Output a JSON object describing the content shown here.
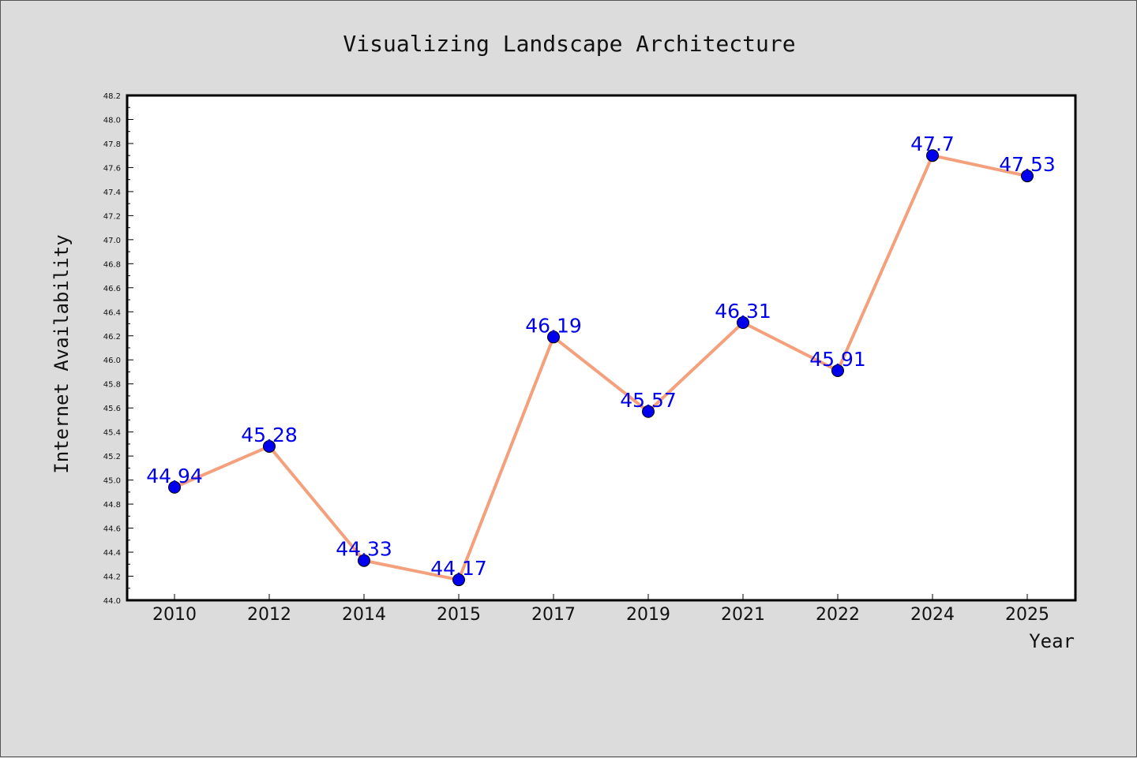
{
  "chart_data": {
    "type": "line",
    "title": "Visualizing Landscape Architecture",
    "xlabel": "Year",
    "ylabel": "Internet Availability",
    "categories": [
      "2010",
      "2012",
      "2014",
      "2015",
      "2017",
      "2019",
      "2021",
      "2022",
      "2024",
      "2025"
    ],
    "values": [
      44.94,
      45.28,
      44.33,
      44.17,
      46.19,
      45.57,
      46.31,
      45.91,
      47.7,
      47.53
    ],
    "data_labels": [
      "44.94",
      "45.28",
      "44.33",
      "44.17",
      "46.19",
      "45.57",
      "46.31",
      "45.91",
      "47.7",
      "47.53"
    ],
    "ylim": [
      44.0,
      48.2
    ],
    "y_ticks": [
      "44.0",
      "44.2",
      "44.4",
      "44.6",
      "44.8",
      "45.0",
      "45.2",
      "45.4",
      "45.6",
      "45.8",
      "46.0",
      "46.2",
      "46.4",
      "46.6",
      "46.8",
      "47.0",
      "47.2",
      "47.4",
      "47.6",
      "47.8",
      "48.0",
      "48.2"
    ],
    "grid": false,
    "legend": "none",
    "colors": {
      "line": "#f4a07c",
      "marker": "#0000ee",
      "data_label": "#0000ee",
      "plot_background": "#ffffff",
      "figure_background": "#dcdcdc"
    }
  }
}
